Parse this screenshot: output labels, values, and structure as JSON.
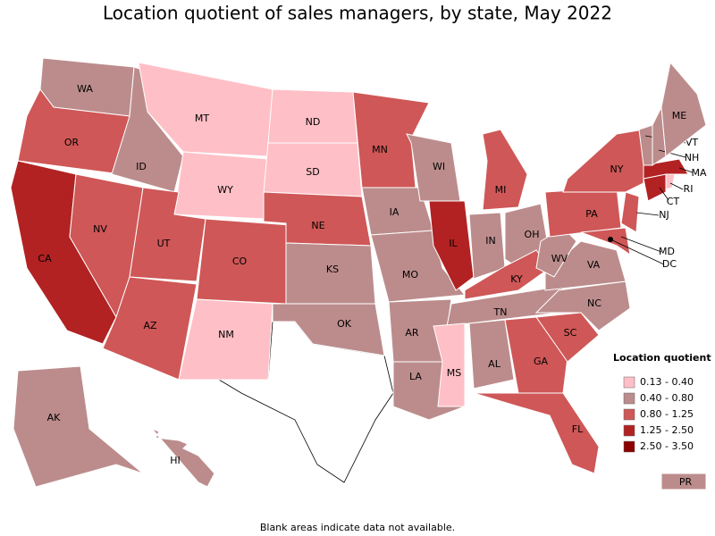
{
  "chart_data": {
    "type": "choropleth",
    "title": "Location quotient of sales managers, by state, May 2022",
    "legend_title": "Location quotient",
    "bins": [
      {
        "label": "0.13 - 0.40",
        "color": "#ffbfc6"
      },
      {
        "label": "0.40 - 0.80",
        "color": "#bc8c8c"
      },
      {
        "label": "0.80 - 1.25",
        "color": "#cf5757"
      },
      {
        "label": "1.25 - 2.50",
        "color": "#b22222"
      },
      {
        "label": "2.50 - 3.50",
        "color": "#8b0000"
      }
    ],
    "states": [
      {
        "abbr": "WA",
        "bin": 1
      },
      {
        "abbr": "OR",
        "bin": 2
      },
      {
        "abbr": "CA",
        "bin": 3
      },
      {
        "abbr": "NV",
        "bin": 2
      },
      {
        "abbr": "ID",
        "bin": 1
      },
      {
        "abbr": "MT",
        "bin": 0
      },
      {
        "abbr": "WY",
        "bin": 0
      },
      {
        "abbr": "UT",
        "bin": 2
      },
      {
        "abbr": "AZ",
        "bin": 2
      },
      {
        "abbr": "CO",
        "bin": 2
      },
      {
        "abbr": "NM",
        "bin": 0
      },
      {
        "abbr": "ND",
        "bin": 0
      },
      {
        "abbr": "SD",
        "bin": 0
      },
      {
        "abbr": "NE",
        "bin": 2
      },
      {
        "abbr": "KS",
        "bin": 1
      },
      {
        "abbr": "OK",
        "bin": 1
      },
      {
        "abbr": "MN",
        "bin": 2
      },
      {
        "abbr": "IA",
        "bin": 1
      },
      {
        "abbr": "MO",
        "bin": 1
      },
      {
        "abbr": "AR",
        "bin": 1
      },
      {
        "abbr": "LA",
        "bin": 1
      },
      {
        "abbr": "WI",
        "bin": 1
      },
      {
        "abbr": "IL",
        "bin": 3
      },
      {
        "abbr": "MI",
        "bin": 2
      },
      {
        "abbr": "IN",
        "bin": 1
      },
      {
        "abbr": "OH",
        "bin": 1
      },
      {
        "abbr": "KY",
        "bin": 2
      },
      {
        "abbr": "TN",
        "bin": 1
      },
      {
        "abbr": "MS",
        "bin": 0
      },
      {
        "abbr": "AL",
        "bin": 1
      },
      {
        "abbr": "GA",
        "bin": 2
      },
      {
        "abbr": "FL",
        "bin": 2
      },
      {
        "abbr": "SC",
        "bin": 2
      },
      {
        "abbr": "NC",
        "bin": 1
      },
      {
        "abbr": "VA",
        "bin": 1
      },
      {
        "abbr": "WV",
        "bin": 1
      },
      {
        "abbr": "PA",
        "bin": 2
      },
      {
        "abbr": "NY",
        "bin": 2
      },
      {
        "abbr": "NJ",
        "bin": 2
      },
      {
        "abbr": "MD",
        "bin": 2
      },
      {
        "abbr": "DC",
        "bin": 4
      },
      {
        "abbr": "CT",
        "bin": 3
      },
      {
        "abbr": "RI",
        "bin": 0
      },
      {
        "abbr": "MA",
        "bin": 3
      },
      {
        "abbr": "VT",
        "bin": 1
      },
      {
        "abbr": "NH",
        "bin": 1
      },
      {
        "abbr": "ME",
        "bin": 1
      },
      {
        "abbr": "AK",
        "bin": 1
      },
      {
        "abbr": "HI",
        "bin": 1
      },
      {
        "abbr": "PR",
        "bin": 1
      }
    ],
    "footnote": "Blank areas indicate data not available."
  }
}
